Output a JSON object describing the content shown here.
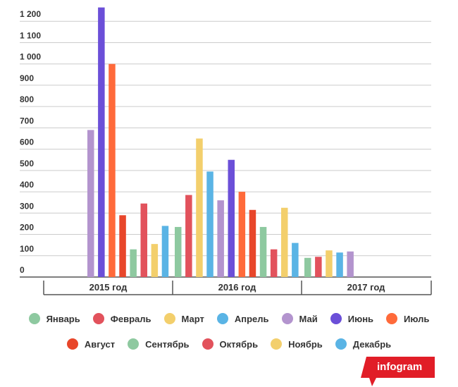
{
  "chart_data": {
    "type": "bar",
    "categories": [
      "2015 год",
      "2016 год",
      "2017 год"
    ],
    "y_ticks": [
      "0",
      "100",
      "200",
      "300",
      "400",
      "500",
      "600",
      "700",
      "800",
      "900",
      "1 000",
      "1 100",
      "1 200"
    ],
    "ylim": [
      0,
      1300
    ],
    "grid": true,
    "legend_position": "bottom",
    "series": [
      {
        "name": "Январь",
        "color": "#8ec9a0",
        "values": [
          null,
          235,
          90
        ]
      },
      {
        "name": "Февраль",
        "color": "#e2525c",
        "values": [
          null,
          385,
          95
        ]
      },
      {
        "name": "Март",
        "color": "#f3cf6c",
        "values": [
          null,
          650,
          125
        ]
      },
      {
        "name": "Апрель",
        "color": "#5ab4e5",
        "values": [
          null,
          495,
          115
        ]
      },
      {
        "name": "Май",
        "color": "#b394ce",
        "values": [
          690,
          360,
          120
        ]
      },
      {
        "name": "Июнь",
        "color": "#6b4fd8",
        "values": [
          1265,
          550,
          null
        ]
      },
      {
        "name": "Июль",
        "color": "#ff6a3a",
        "values": [
          1000,
          400,
          null
        ]
      },
      {
        "name": "Август",
        "color": "#e8462a",
        "values": [
          290,
          315,
          null
        ]
      },
      {
        "name": "Сентябрь",
        "color": "#8ec9a0",
        "values": [
          130,
          235,
          null
        ]
      },
      {
        "name": "Октябрь",
        "color": "#e2525c",
        "values": [
          345,
          130,
          null
        ]
      },
      {
        "name": "Ноябрь",
        "color": "#f3cf6c",
        "values": [
          155,
          325,
          null
        ]
      },
      {
        "name": "Декабрь",
        "color": "#5ab4e5",
        "values": [
          240,
          160,
          null
        ]
      }
    ]
  },
  "brand": {
    "label": "infogram",
    "color": "#e11d27"
  }
}
